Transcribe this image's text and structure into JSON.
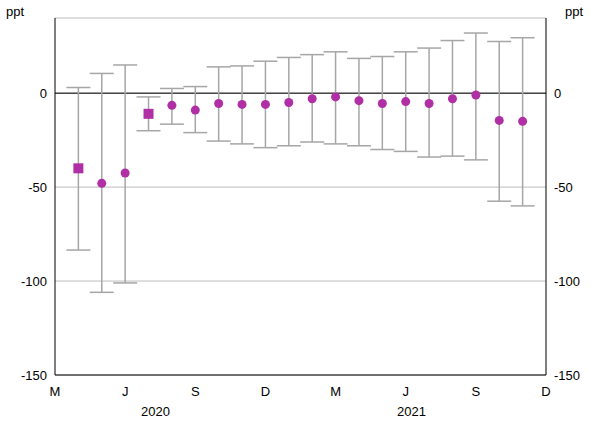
{
  "chart_data": {
    "type": "scatter",
    "ylabel": "ppt",
    "categories": [
      "M",
      null,
      null,
      "J",
      null,
      null,
      "S",
      null,
      null,
      "D",
      null,
      null,
      "M",
      null,
      null,
      "J",
      null,
      null,
      "S",
      null,
      null,
      "D"
    ],
    "x_groups": [
      {
        "label": "2020",
        "first": 0,
        "last": 9
      },
      {
        "label": "2021",
        "first": 10,
        "last": 21
      }
    ],
    "series": [
      {
        "marker": "square",
        "color": "#b12fa5",
        "values": [
          null,
          -40,
          null,
          null,
          -11,
          null,
          null,
          null,
          null,
          null,
          null,
          null,
          null,
          null,
          null,
          null,
          null,
          null,
          null,
          null,
          null,
          null
        ],
        "lower": [
          null,
          -83.5,
          null,
          null,
          -20,
          null,
          null,
          null,
          null,
          null,
          null,
          null,
          null,
          null,
          null,
          null,
          null,
          null,
          null,
          null,
          null,
          null
        ],
        "upper": [
          null,
          3,
          null,
          null,
          -2,
          null,
          null,
          null,
          null,
          null,
          null,
          null,
          null,
          null,
          null,
          null,
          null,
          null,
          null,
          null,
          null,
          null
        ]
      },
      {
        "marker": "circle",
        "color": "#b12fa5",
        "values": [
          null,
          null,
          -48,
          -42.5,
          null,
          -6.5,
          -9,
          -5.5,
          -6,
          -6,
          -5,
          -3,
          -2,
          -4,
          -5.5,
          -4.5,
          -5.5,
          -3,
          -1,
          -14.5,
          -15,
          null
        ],
        "lower": [
          null,
          null,
          -106,
          -101,
          null,
          -16.5,
          -21,
          -25.5,
          -27,
          -29,
          -28,
          -26,
          -27,
          -28,
          -30,
          -31,
          -34,
          -33.5,
          -35.5,
          -57.5,
          -60,
          null
        ],
        "upper": [
          null,
          null,
          10.5,
          15,
          null,
          2.5,
          3.5,
          14,
          14.5,
          17,
          19,
          20.5,
          22,
          18.5,
          19.5,
          22,
          24,
          28,
          32,
          27.5,
          29.5,
          null
        ]
      }
    ],
    "ylim": [
      -150,
      40
    ],
    "yticks": [
      -150,
      -100,
      -50,
      0
    ],
    "grid": true
  }
}
